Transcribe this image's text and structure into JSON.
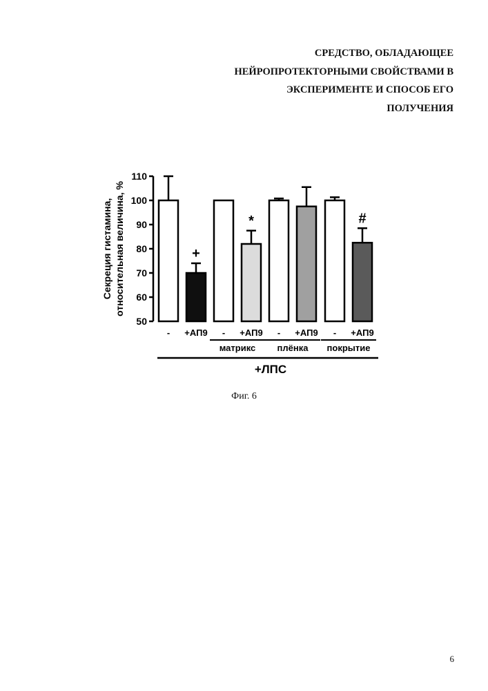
{
  "header": {
    "lines": [
      "СРЕДСТВО, ОБЛАДАЮЩЕЕ",
      "НЕЙРОПРОТЕКТОРНЫМИ СВОЙСТВАМИ В",
      "ЭКСПЕРИМЕНТЕ И СПОСОБ ЕГО",
      "ПОЛУЧЕНИЯ"
    ]
  },
  "figure_caption": "Фиг. 6",
  "page_number": "6",
  "chart_data": {
    "type": "bar",
    "ylabel_lines": [
      "Секреция гистамина,",
      "относительная величина, %"
    ],
    "ylim": [
      50,
      110
    ],
    "yticks": [
      50,
      60,
      70,
      80,
      90,
      100,
      110
    ],
    "grid": false,
    "categories": [
      "-",
      "+АП9",
      "-",
      "+АП9",
      "-",
      "+АП9",
      "-",
      "+АП9"
    ],
    "values": [
      100,
      70,
      100,
      82,
      100,
      97.5,
      100,
      82.5
    ],
    "errors": [
      10,
      4,
      0,
      5.5,
      0.8,
      8,
      1.3,
      6
    ],
    "colors": [
      "#ffffff",
      "#0f0f0f",
      "#ffffff",
      "#dcdcdc",
      "#ffffff",
      "#a0a0a0",
      "#ffffff",
      "#5a5a5a"
    ],
    "annotations": [
      {
        "bar_index": 1,
        "text": "+"
      },
      {
        "bar_index": 3,
        "text": "*"
      },
      {
        "bar_index": 7,
        "text": "#"
      }
    ],
    "groups": [
      {
        "label": "матрикс",
        "bars": [
          2,
          3
        ]
      },
      {
        "label": "плёнка",
        "bars": [
          4,
          5
        ]
      },
      {
        "label": "покрытие",
        "bars": [
          6,
          7
        ]
      }
    ],
    "overall_label": "+ЛПС"
  }
}
